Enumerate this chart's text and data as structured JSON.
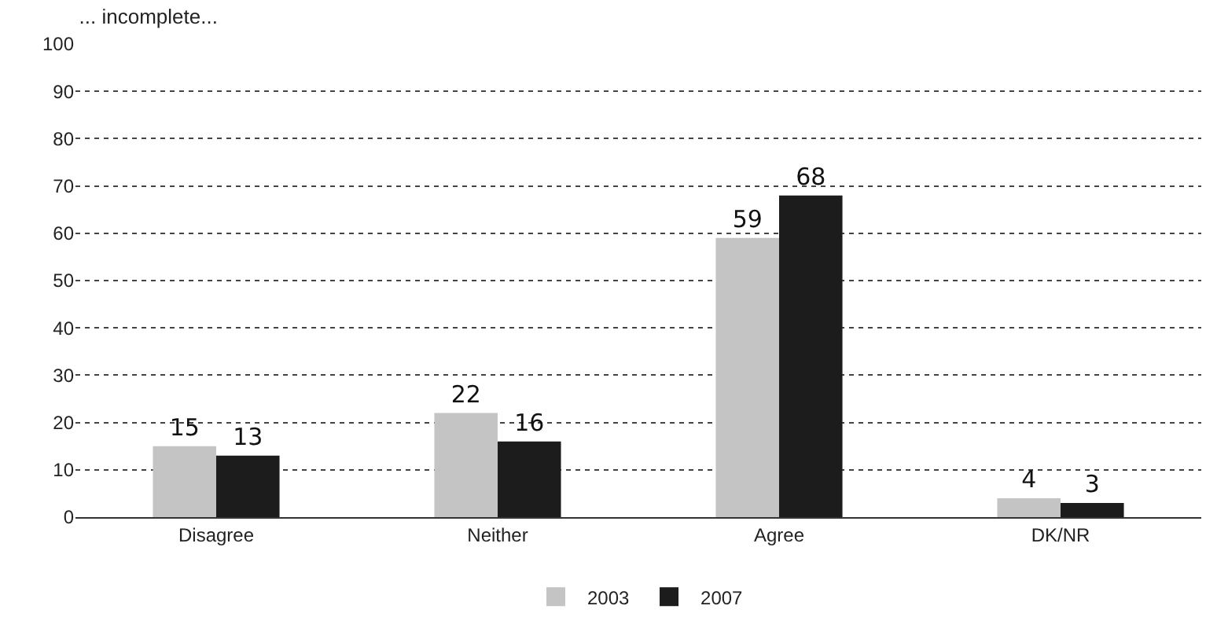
{
  "chart_data": {
    "type": "bar",
    "title": "... incomplete...",
    "categories": [
      "Disagree",
      "Neither",
      "Agree",
      "DK/NR"
    ],
    "series": [
      {
        "name": "2003",
        "color": "#c4c4c4",
        "values": [
          15,
          22,
          59,
          4
        ]
      },
      {
        "name": "2007",
        "color": "#1c1c1c",
        "values": [
          13,
          16,
          68,
          3
        ]
      }
    ],
    "ylim": [
      0,
      100
    ],
    "yticks": [
      0,
      10,
      20,
      30,
      40,
      50,
      60,
      70,
      80,
      90,
      100
    ],
    "grid": "y",
    "legend": "bottom",
    "data_labels": true
  }
}
